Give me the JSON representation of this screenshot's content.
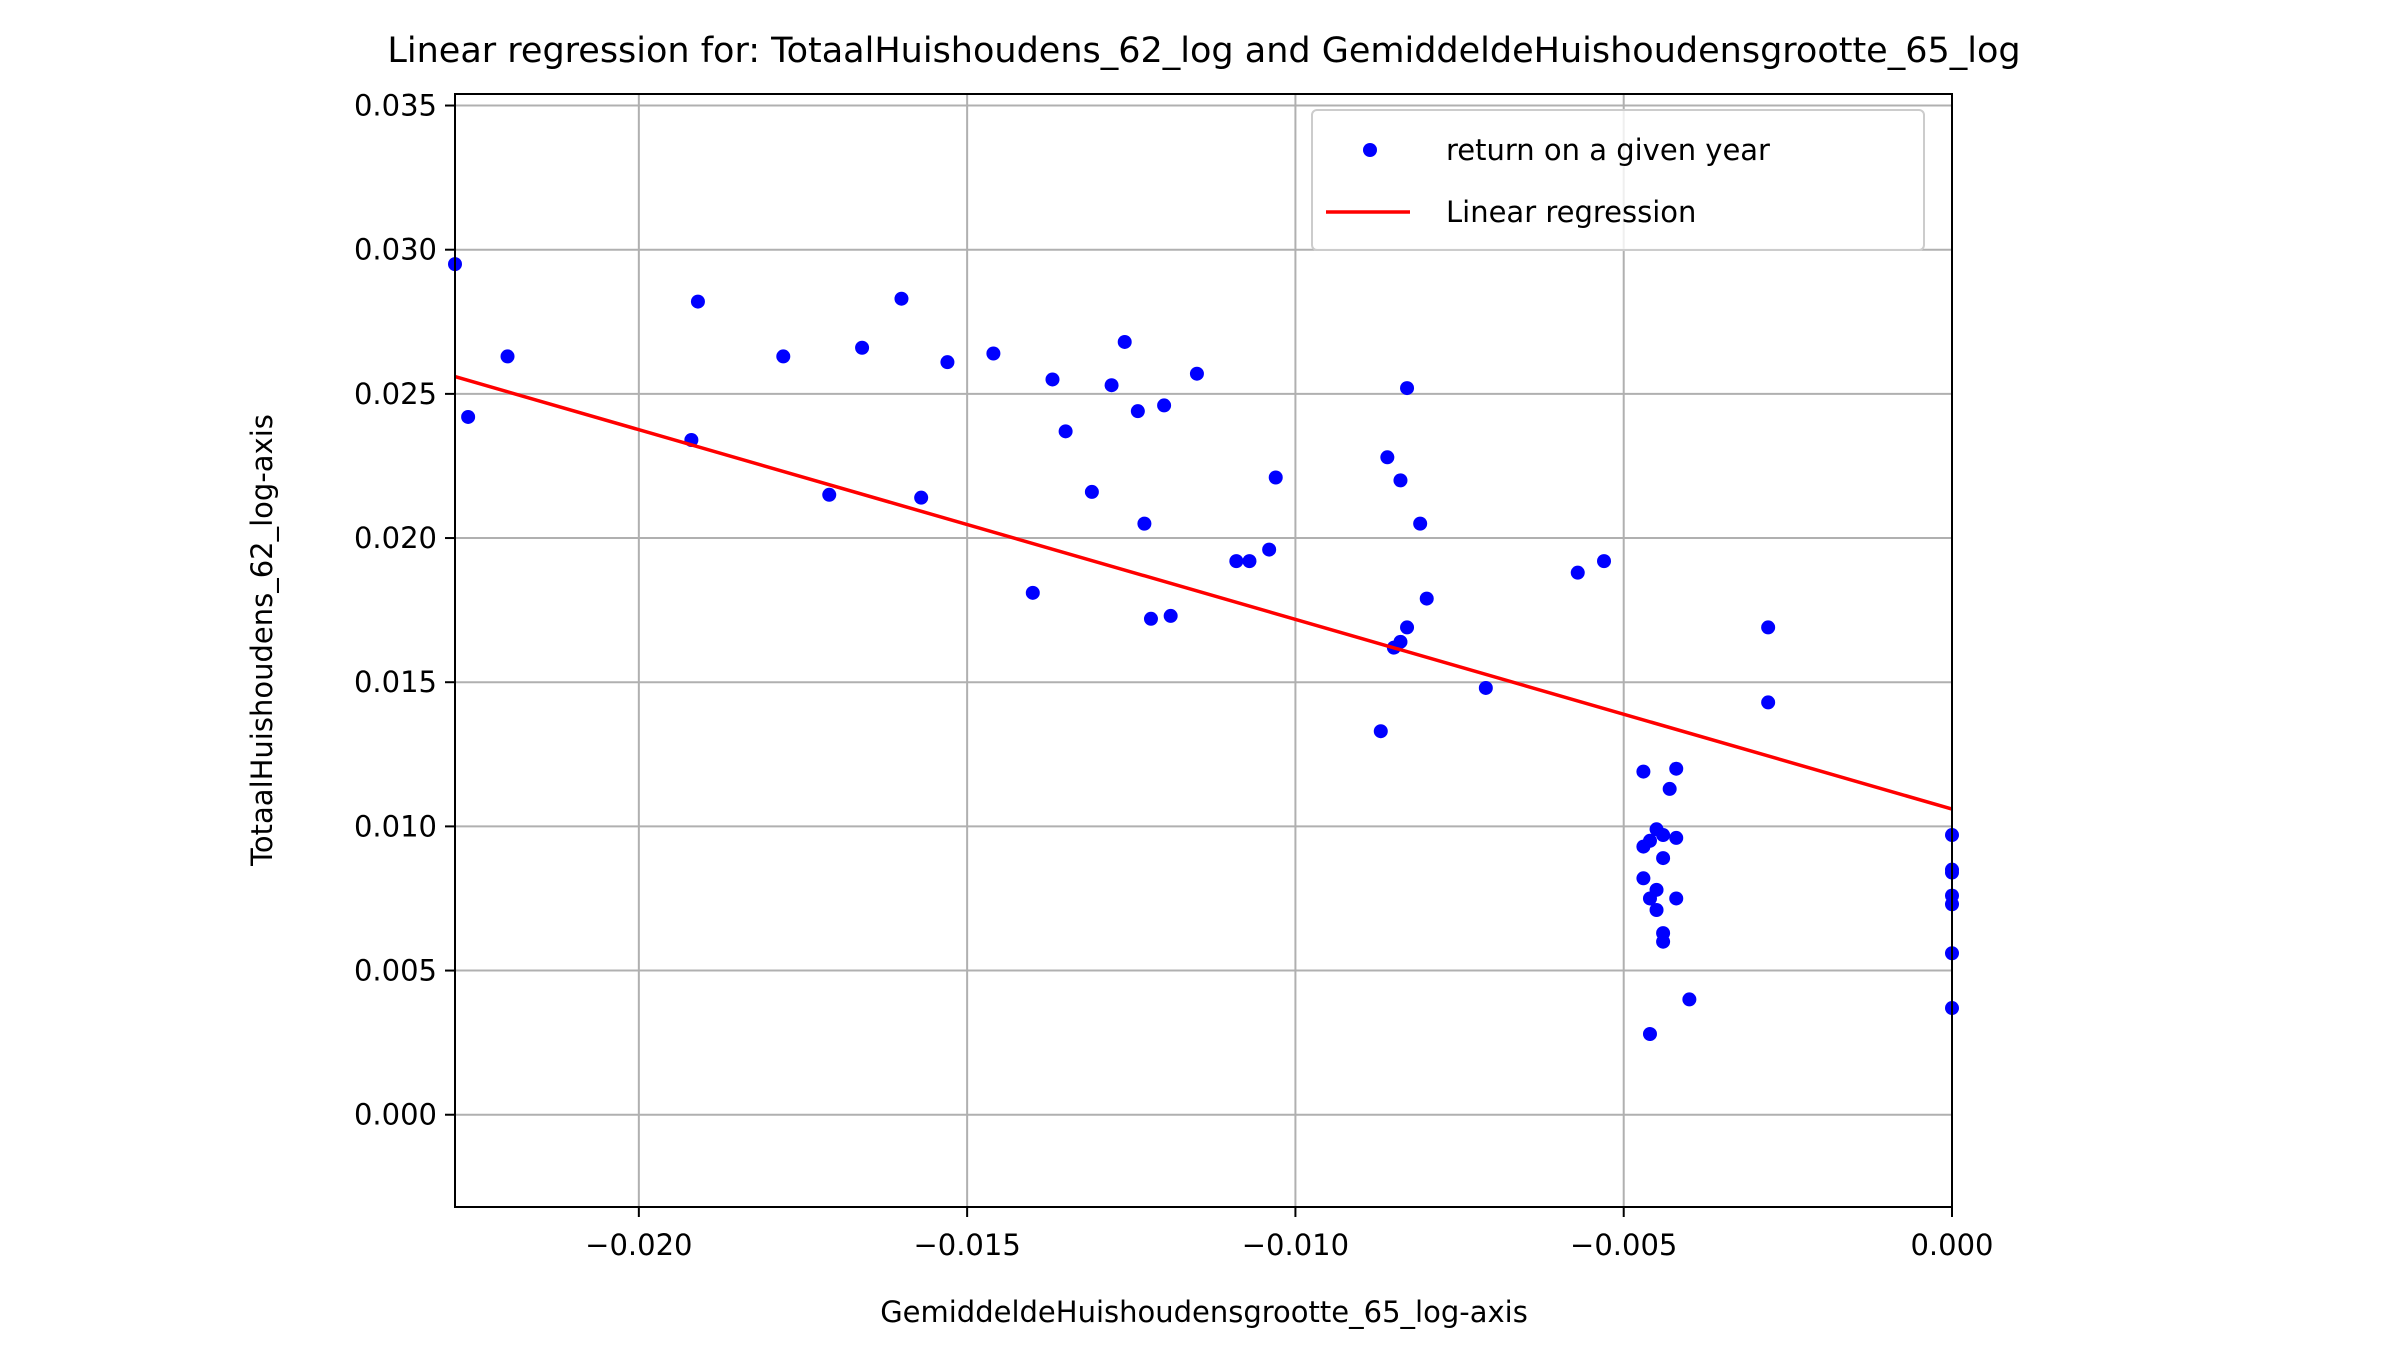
{
  "chart_data": {
    "type": "scatter",
    "title": "Linear regression for: TotaalHuishoudens_62_log and GemiddeldeHuishoudensgrootte_65_log",
    "xlabel": "GemiddeldeHuishoudensgrootte_65_log-axis",
    "ylabel": "TotaalHuishoudens_62_log-axis",
    "xlim": [
      -0.0228,
      0.0
    ],
    "ylim": [
      -0.0032,
      0.0354
    ],
    "xticks": [
      -0.02,
      -0.015,
      -0.01,
      -0.005,
      0.0
    ],
    "xtick_labels": [
      "−0.020",
      "−0.015",
      "−0.010",
      "−0.005",
      "0.000"
    ],
    "yticks": [
      0.0,
      0.005,
      0.01,
      0.015,
      0.02,
      0.025,
      0.03,
      0.035
    ],
    "ytick_labels": [
      "0.000",
      "0.005",
      "0.010",
      "0.015",
      "0.020",
      "0.025",
      "0.030",
      "0.035"
    ],
    "grid": true,
    "legend_position": "top-right",
    "series": [
      {
        "name": "return on a given year",
        "kind": "scatter",
        "color": "#0000ff",
        "points": [
          [
            -0.0228,
            0.0295
          ],
          [
            -0.0226,
            0.0242
          ],
          [
            -0.022,
            0.0263
          ],
          [
            -0.0192,
            0.0234
          ],
          [
            -0.0191,
            0.0282
          ],
          [
            -0.0178,
            0.0263
          ],
          [
            -0.0171,
            0.0215
          ],
          [
            -0.0166,
            0.0266
          ],
          [
            -0.016,
            0.0283
          ],
          [
            -0.0157,
            0.0214
          ],
          [
            -0.0153,
            0.0261
          ],
          [
            -0.0146,
            0.0264
          ],
          [
            -0.014,
            0.0181
          ],
          [
            -0.0137,
            0.0255
          ],
          [
            -0.0135,
            0.0237
          ],
          [
            -0.0131,
            0.0216
          ],
          [
            -0.0128,
            0.0253
          ],
          [
            -0.0126,
            0.0268
          ],
          [
            -0.0124,
            0.0244
          ],
          [
            -0.0123,
            0.0205
          ],
          [
            -0.0122,
            0.0172
          ],
          [
            -0.012,
            0.0246
          ],
          [
            -0.0119,
            0.0173
          ],
          [
            -0.0115,
            0.0257
          ],
          [
            -0.0109,
            0.0192
          ],
          [
            -0.0107,
            0.0192
          ],
          [
            -0.0104,
            0.0196
          ],
          [
            -0.0103,
            0.0221
          ],
          [
            -0.0087,
            0.0133
          ],
          [
            -0.0086,
            0.0228
          ],
          [
            -0.0085,
            0.0162
          ],
          [
            -0.0084,
            0.0164
          ],
          [
            -0.0084,
            0.022
          ],
          [
            -0.0083,
            0.0169
          ],
          [
            -0.0083,
            0.0252
          ],
          [
            -0.0081,
            0.0205
          ],
          [
            -0.008,
            0.0179
          ],
          [
            -0.0071,
            0.0148
          ],
          [
            -0.0057,
            0.0188
          ],
          [
            -0.0053,
            0.0192
          ],
          [
            -0.0047,
            0.0119
          ],
          [
            -0.0047,
            0.0093
          ],
          [
            -0.0047,
            0.0082
          ],
          [
            -0.0046,
            0.0095
          ],
          [
            -0.0046,
            0.0028
          ],
          [
            -0.0046,
            0.0075
          ],
          [
            -0.0045,
            0.0099
          ],
          [
            -0.0045,
            0.0078
          ],
          [
            -0.0045,
            0.0071
          ],
          [
            -0.0044,
            0.0063
          ],
          [
            -0.0044,
            0.0097
          ],
          [
            -0.0044,
            0.0089
          ],
          [
            -0.0044,
            0.006
          ],
          [
            -0.0043,
            0.0113
          ],
          [
            -0.0042,
            0.012
          ],
          [
            -0.0042,
            0.0096
          ],
          [
            -0.0042,
            0.0075
          ],
          [
            -0.004,
            0.004
          ],
          [
            -0.0028,
            0.0169
          ],
          [
            -0.0028,
            0.0143
          ],
          [
            0.0,
            0.0097
          ],
          [
            0.0,
            0.0085
          ],
          [
            0.0,
            0.0084
          ],
          [
            0.0,
            0.0076
          ],
          [
            0.0,
            0.0073
          ],
          [
            0.0,
            0.0056
          ],
          [
            0.0,
            0.0037
          ]
        ]
      },
      {
        "name": "Linear regression",
        "kind": "line",
        "color": "#ff0000",
        "points": [
          [
            -0.0228,
            0.0256
          ],
          [
            0.0,
            0.0106
          ]
        ]
      }
    ]
  }
}
